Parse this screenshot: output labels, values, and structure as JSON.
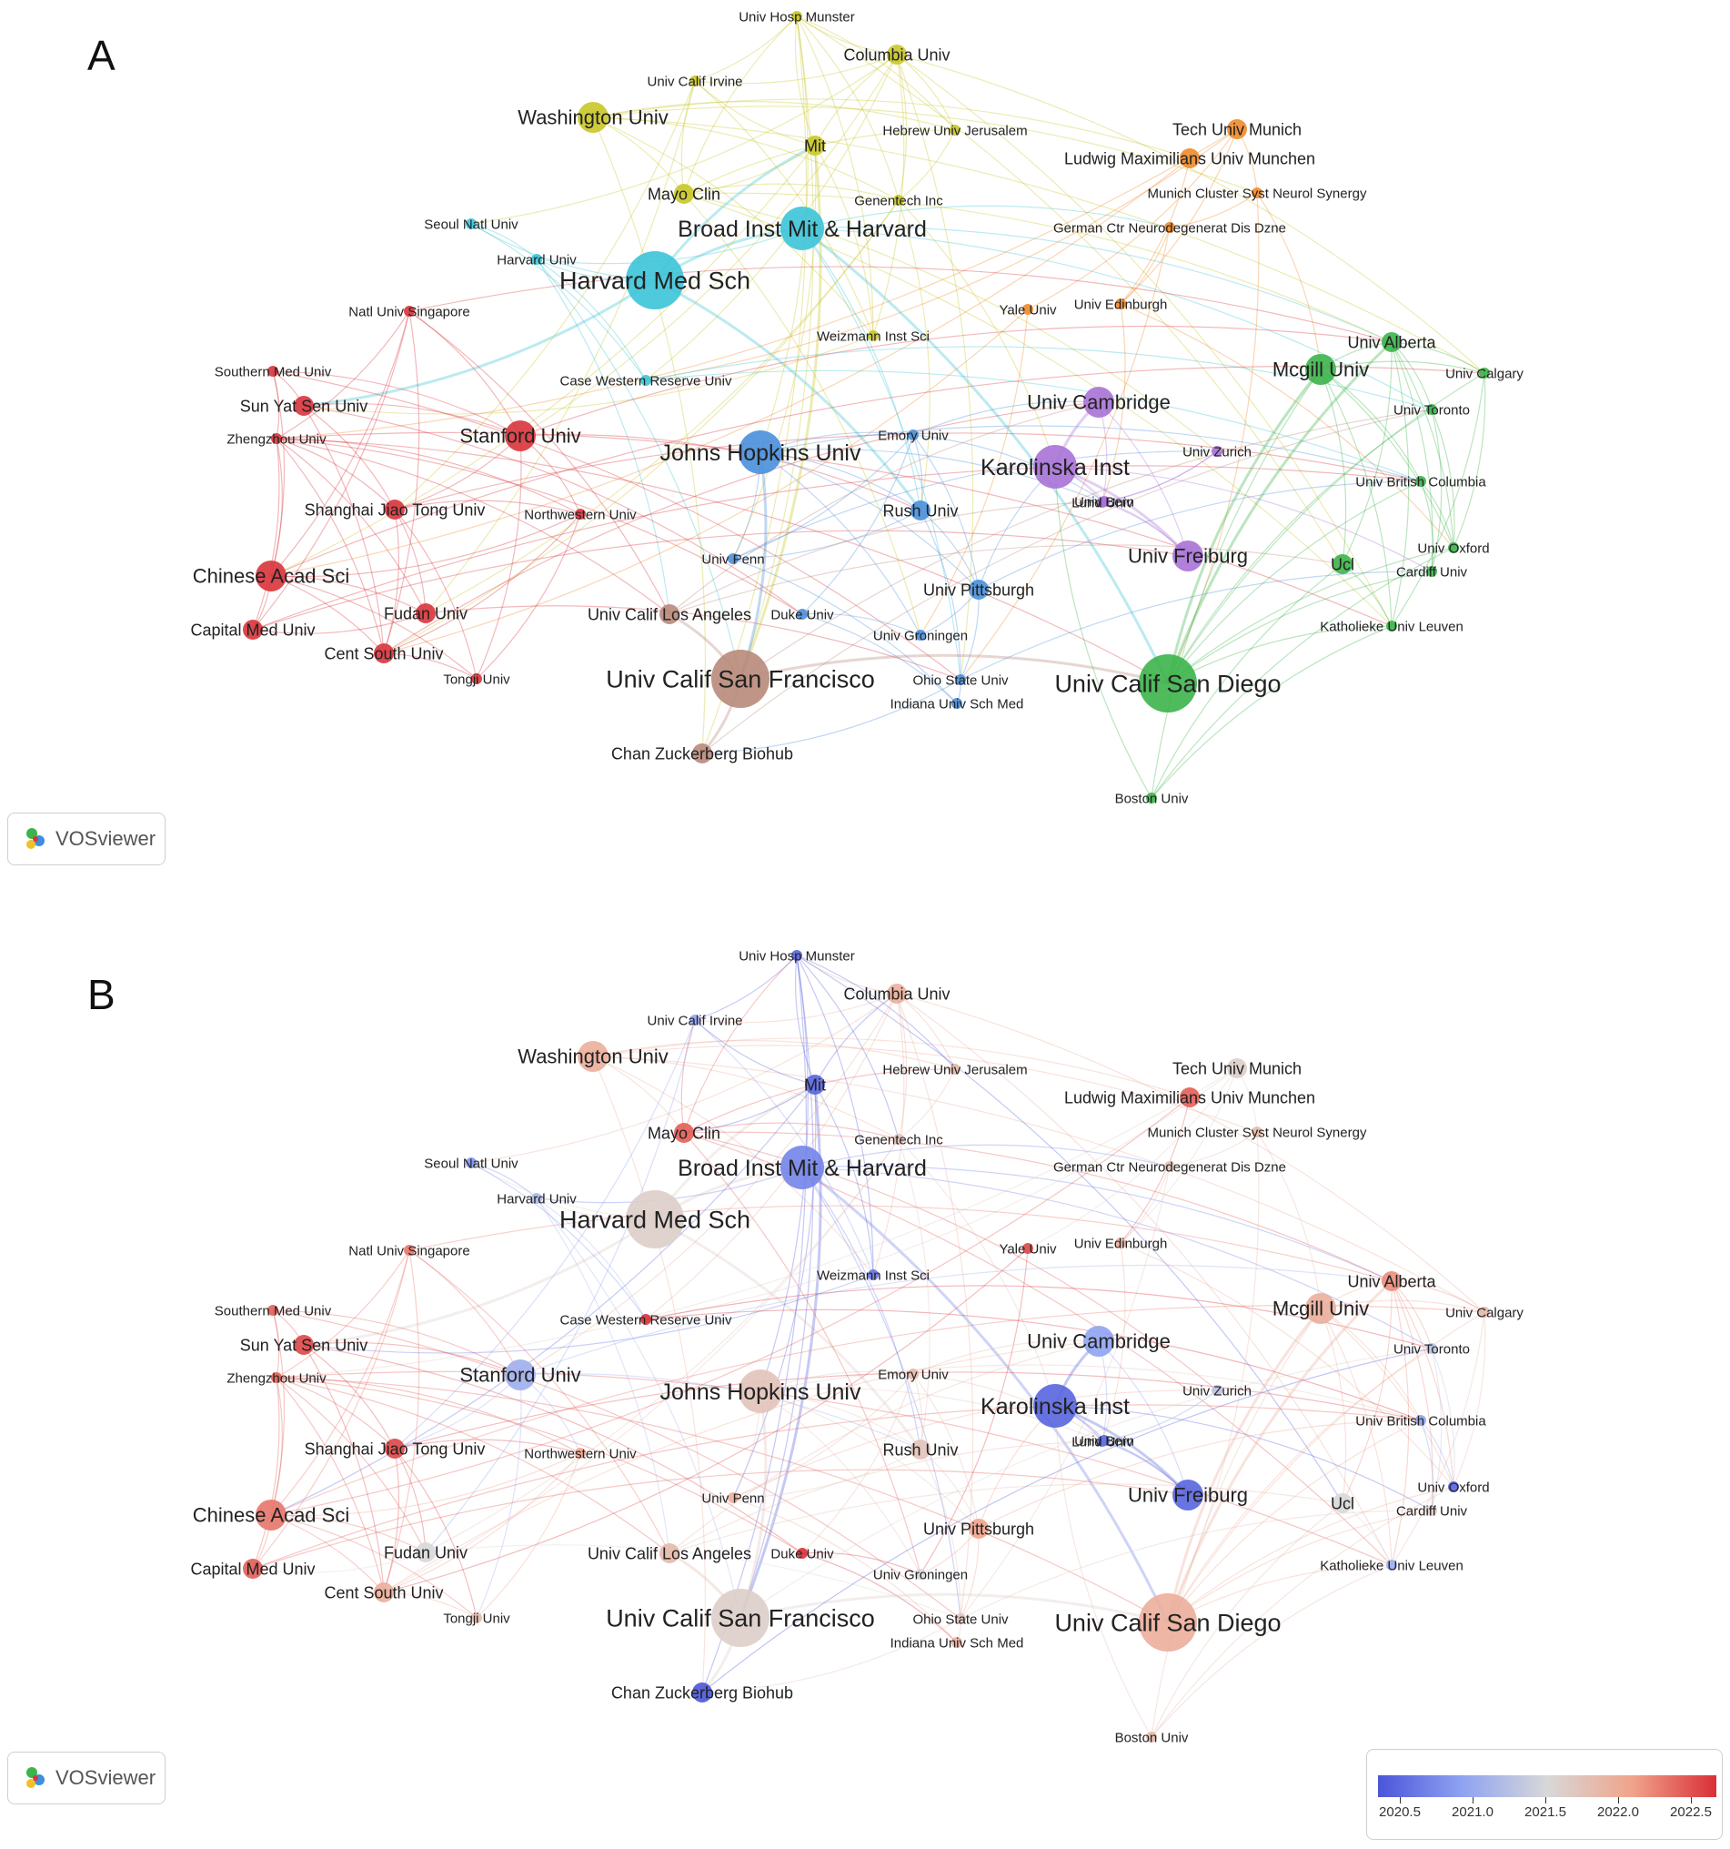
{
  "panels": [
    {
      "id": "A",
      "letter": "A",
      "mode": "cluster"
    },
    {
      "id": "B",
      "letter": "B",
      "mode": "overlay"
    }
  ],
  "badge": {
    "label": "VOSviewer"
  },
  "legend": {
    "ticks": [
      "2020.5",
      "2021.0",
      "2021.5",
      "2022.0",
      "2022.5"
    ],
    "min": 2020.5,
    "max": 2022.5,
    "gradient": [
      "#4a55d9",
      "#8fa3f2",
      "#d8d8d8",
      "#f0a48c",
      "#d92f36"
    ]
  },
  "cluster_colors": {
    "red": "#d9343c",
    "yellow": "#c9c628",
    "cyan": "#3cc4d8",
    "orange": "#f08a2a",
    "green": "#3cb44a",
    "blue": "#4a8fdc",
    "purple": "#a872d6",
    "brown": "#b8897a"
  },
  "nodes": [
    {
      "label": "Harvard Med Sch",
      "cluster": "cyan",
      "weight": 5,
      "year": 2021.6
    },
    {
      "label": "Broad Inst Mit & Harvard",
      "cluster": "cyan",
      "weight": 4,
      "year": 2020.8
    },
    {
      "label": "Washington Univ",
      "cluster": "yellow",
      "weight": 3,
      "year": 2021.9
    },
    {
      "label": "Mit",
      "cluster": "yellow",
      "weight": 2,
      "year": 2020.6
    },
    {
      "label": "Mayo Clin",
      "cluster": "yellow",
      "weight": 2,
      "year": 2022.3
    },
    {
      "label": "Columbia Univ",
      "cluster": "yellow",
      "weight": 2,
      "year": 2021.9
    },
    {
      "label": "Univ Hosp Munster",
      "cluster": "yellow",
      "weight": 1,
      "year": 2020.6
    },
    {
      "label": "Univ Calif Irvine",
      "cluster": "yellow",
      "weight": 1,
      "year": 2021.0
    },
    {
      "label": "Hebrew Univ Jerusalem",
      "cluster": "yellow",
      "weight": 1,
      "year": 2021.8
    },
    {
      "label": "Genentech Inc",
      "cluster": "yellow",
      "weight": 1,
      "year": 2021.7
    },
    {
      "label": "Weizmann Inst Sci",
      "cluster": "yellow",
      "weight": 1,
      "year": 2020.7
    },
    {
      "label": "Tech Univ Munich",
      "cluster": "orange",
      "weight": 2,
      "year": 2021.6
    },
    {
      "label": "Ludwig Maximilians Univ Munchen",
      "cluster": "orange",
      "weight": 2,
      "year": 2022.3
    },
    {
      "label": "Munich Cluster Syst Neurol Synergy",
      "cluster": "orange",
      "weight": 1,
      "year": 2021.8
    },
    {
      "label": "German Ctr Neurodegenerat Dis Dzne",
      "cluster": "orange",
      "weight": 1,
      "year": 2021.7
    },
    {
      "label": "Yale Univ",
      "cluster": "orange",
      "weight": 1,
      "year": 2022.4
    },
    {
      "label": "Univ Edinburgh",
      "cluster": "orange",
      "weight": 1,
      "year": 2021.9
    },
    {
      "label": "Seoul Natl Univ",
      "cluster": "cyan",
      "weight": 1,
      "year": 2020.9
    },
    {
      "label": "Natl Univ Singapore",
      "cluster": "red",
      "weight": 1,
      "year": 2022.2
    },
    {
      "label": "Harvard Univ",
      "cluster": "cyan",
      "weight": 1,
      "year": 2021.2
    },
    {
      "label": "Southern Med Univ",
      "cluster": "red",
      "weight": 1,
      "year": 2022.3
    },
    {
      "label": "Sun Yat Sen Univ",
      "cluster": "red",
      "weight": 2,
      "year": 2022.4
    },
    {
      "label": "Zhengzhou Univ",
      "cluster": "red",
      "weight": 1,
      "year": 2022.3
    },
    {
      "label": "Stanford Univ",
      "cluster": "red",
      "weight": 3,
      "year": 2021.1
    },
    {
      "label": "Case Western Reserve Univ",
      "cluster": "cyan",
      "weight": 1,
      "year": 2022.5
    },
    {
      "label": "Shanghai Jiao Tong Univ",
      "cluster": "red",
      "weight": 2,
      "year": 2022.4
    },
    {
      "label": "Northwestern Univ",
      "cluster": "red",
      "weight": 1,
      "year": 2022.0
    },
    {
      "label": "Chinese Acad Sci",
      "cluster": "red",
      "weight": 3,
      "year": 2022.2
    },
    {
      "label": "Fudan Univ",
      "cluster": "red",
      "weight": 2,
      "year": 2021.5
    },
    {
      "label": "Capital Med Univ",
      "cluster": "red",
      "weight": 2,
      "year": 2022.3
    },
    {
      "label": "Cent South Univ",
      "cluster": "red",
      "weight": 2,
      "year": 2021.9
    },
    {
      "label": "Tongji Univ",
      "cluster": "red",
      "weight": 1,
      "year": 2021.8
    },
    {
      "label": "Johns Hopkins Univ",
      "cluster": "blue",
      "weight": 4,
      "year": 2021.7
    },
    {
      "label": "Emory Univ",
      "cluster": "blue",
      "weight": 1,
      "year": 2021.8
    },
    {
      "label": "Rush Univ",
      "cluster": "blue",
      "weight": 2,
      "year": 2021.7
    },
    {
      "label": "Univ Penn",
      "cluster": "blue",
      "weight": 1,
      "year": 2021.9
    },
    {
      "label": "Univ Pittsburgh",
      "cluster": "blue",
      "weight": 2,
      "year": 2022.0
    },
    {
      "label": "Univ Calif Los Angeles",
      "cluster": "brown",
      "weight": 2,
      "year": 2021.8
    },
    {
      "label": "Duke Univ",
      "cluster": "blue",
      "weight": 1,
      "year": 2022.5
    },
    {
      "label": "Univ Groningen",
      "cluster": "blue",
      "weight": 1,
      "year": 2021.5
    },
    {
      "label": "Univ Calif San Francisco",
      "cluster": "brown",
      "weight": 5,
      "year": 2021.6
    },
    {
      "label": "Ohio State Univ",
      "cluster": "blue",
      "weight": 1,
      "year": 2021.7
    },
    {
      "label": "Indiana Univ Sch Med",
      "cluster": "blue",
      "weight": 1,
      "year": 2021.9
    },
    {
      "label": "Chan Zuckerberg Biohub",
      "cluster": "brown",
      "weight": 2,
      "year": 2020.5
    },
    {
      "label": "Univ Calif San Diego",
      "cluster": "green",
      "weight": 5,
      "year": 2021.9
    },
    {
      "label": "Boston Univ",
      "cluster": "green",
      "weight": 1,
      "year": 2021.8
    },
    {
      "label": "Karolinska Inst",
      "cluster": "purple",
      "weight": 4,
      "year": 2020.6
    },
    {
      "label": "Univ Cambridge",
      "cluster": "purple",
      "weight": 3,
      "year": 2021.0
    },
    {
      "label": "Univ Zurich",
      "cluster": "purple",
      "weight": 1,
      "year": 2021.3
    },
    {
      "label": "Univ Bern",
      "cluster": "purple",
      "weight": 1,
      "year": 2020.6
    },
    {
      "label": "Lund Univ",
      "cluster": "purple",
      "weight": 1,
      "year": 2020.7
    },
    {
      "label": "Univ Freiburg",
      "cluster": "purple",
      "weight": 3,
      "year": 2020.6
    },
    {
      "label": "Mcgill Univ",
      "cluster": "green",
      "weight": 3,
      "year": 2021.9
    },
    {
      "label": "Univ Alberta",
      "cluster": "green",
      "weight": 2,
      "year": 2022.1
    },
    {
      "label": "Univ Calgary",
      "cluster": "green",
      "weight": 1,
      "year": 2021.8
    },
    {
      "label": "Univ Toronto",
      "cluster": "green",
      "weight": 1,
      "year": 2021.3
    },
    {
      "label": "Univ British Columbia",
      "cluster": "green",
      "weight": 1,
      "year": 2021.0
    },
    {
      "label": "Univ Oxford",
      "cluster": "green",
      "weight": 1,
      "year": 2020.6
    },
    {
      "label": "Cardiff Univ",
      "cluster": "green",
      "weight": 1,
      "year": 2021.6
    },
    {
      "label": "Ucl",
      "cluster": "green",
      "weight": 2,
      "year": 2021.5
    },
    {
      "label": "Katholieke Univ Leuven",
      "cluster": "green",
      "weight": 1,
      "year": 2021.1
    }
  ]
}
